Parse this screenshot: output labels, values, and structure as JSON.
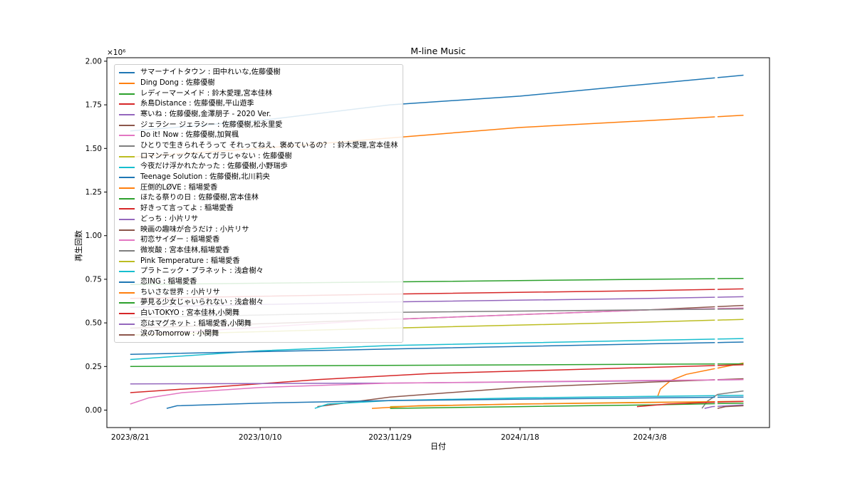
{
  "chart_data": {
    "type": "line",
    "title": "M-line Music",
    "xlabel": "日付",
    "ylabel": "再生回数",
    "y_multiplier_label": "×10⁶",
    "y_unit_scale": 1000000,
    "xlim": [
      "2023-08-12",
      "2024-04-23"
    ],
    "ylim": [
      -0.1,
      2.02
    ],
    "x_ticks": [
      "2023-08-21",
      "2023-10-10",
      "2023-11-29",
      "2024-01-18",
      "2024-03-08"
    ],
    "x_tick_labels": [
      "2023/8/21",
      "2023/10/10",
      "2023/11/29",
      "2024/1/18",
      "2024/3/8"
    ],
    "y_ticks": [
      0.0,
      0.25,
      0.5,
      0.75,
      1.0,
      1.25,
      1.5,
      1.75,
      2.0
    ],
    "y_tick_labels": [
      "0.00",
      "0.25",
      "0.50",
      "0.75",
      "1.00",
      "1.25",
      "1.50",
      "1.75",
      "2.00"
    ],
    "gap_dates": [
      "2024-04-02",
      "2024-04-03"
    ],
    "legend_position": "upper-left",
    "grid": false,
    "series": [
      {
        "name": "サマーナイトタウン : 田中れいな,佐藤優樹",
        "color": "#1f77b4",
        "points": [
          [
            "2023-08-21",
            1.6
          ],
          [
            "2023-10-10",
            1.66
          ],
          [
            "2023-11-29",
            1.75
          ],
          [
            "2024-01-18",
            1.8
          ],
          [
            "2024-03-08",
            1.87
          ],
          [
            "2024-04-13",
            1.92
          ]
        ]
      },
      {
        "name": "Ding Dong : 佐藤優樹",
        "color": "#ff7f0e",
        "points": [
          [
            "2023-08-21",
            1.45
          ],
          [
            "2023-10-10",
            1.5
          ],
          [
            "2023-11-29",
            1.56
          ],
          [
            "2024-01-18",
            1.62
          ],
          [
            "2024-03-08",
            1.66
          ],
          [
            "2024-04-13",
            1.69
          ]
        ]
      },
      {
        "name": "レディーマーメイド : 鈴木愛理,宮本佳林",
        "color": "#2ca02c",
        "points": [
          [
            "2023-08-21",
            0.72
          ],
          [
            "2023-11-29",
            0.735
          ],
          [
            "2024-03-08",
            0.75
          ],
          [
            "2024-04-13",
            0.755
          ]
        ]
      },
      {
        "name": "糸島Distance : 佐藤優樹,平山遊季",
        "color": "#d62728",
        "points": [
          [
            "2023-08-21",
            0.64
          ],
          [
            "2023-11-29",
            0.665
          ],
          [
            "2024-03-08",
            0.685
          ],
          [
            "2024-04-13",
            0.695
          ]
        ]
      },
      {
        "name": "寒いね : 佐藤優樹,金澤朋子 - 2020 Ver.",
        "color": "#9467bd",
        "points": [
          [
            "2023-08-21",
            0.59
          ],
          [
            "2023-11-29",
            0.62
          ],
          [
            "2024-03-08",
            0.64
          ],
          [
            "2024-04-13",
            0.65
          ]
        ]
      },
      {
        "name": "ジェラシー ジェラシー : 佐藤優樹,松永里愛",
        "color": "#8c564b",
        "points": [
          [
            "2023-08-21",
            0.47
          ],
          [
            "2023-11-29",
            0.52
          ],
          [
            "2024-03-08",
            0.575
          ],
          [
            "2024-04-13",
            0.6
          ]
        ]
      },
      {
        "name": "Do it! Now : 佐藤優樹,加賀楓",
        "color": "#e377c2",
        "points": [
          [
            "2023-08-21",
            0.43
          ],
          [
            "2023-11-29",
            0.52
          ],
          [
            "2024-03-08",
            0.575
          ],
          [
            "2024-04-13",
            0.585
          ]
        ]
      },
      {
        "name": "ひとりで生きられそうって それってねえ、褒めているの？ : 鈴木愛理,宮本佳林",
        "color": "#7f7f7f",
        "points": [
          [
            "2023-08-21",
            0.53
          ],
          [
            "2023-11-29",
            0.56
          ],
          [
            "2024-03-08",
            0.575
          ],
          [
            "2024-04-13",
            0.58
          ]
        ]
      },
      {
        "name": "ロマンティックなんてガラじゃない : 佐藤優樹",
        "color": "#bcbd22",
        "points": [
          [
            "2023-08-21",
            0.43
          ],
          [
            "2023-11-29",
            0.47
          ],
          [
            "2024-03-08",
            0.505
          ],
          [
            "2024-04-13",
            0.52
          ]
        ]
      },
      {
        "name": "今夜だけ浮かれたかった : 佐藤優樹,小野瑞歩",
        "color": "#17becf",
        "points": [
          [
            "2023-08-21",
            0.29
          ],
          [
            "2023-10-10",
            0.34
          ],
          [
            "2023-11-29",
            0.37
          ],
          [
            "2024-01-18",
            0.385
          ],
          [
            "2024-03-08",
            0.4
          ],
          [
            "2024-04-13",
            0.41
          ]
        ]
      },
      {
        "name": "Teenage Solution : 佐藤優樹,北川莉央",
        "color": "#1f77b4",
        "points": [
          [
            "2023-08-21",
            0.32
          ],
          [
            "2023-11-29",
            0.35
          ],
          [
            "2024-03-08",
            0.38
          ],
          [
            "2024-04-13",
            0.39
          ]
        ]
      },
      {
        "name": "圧倒的LØVE : 稲場愛香",
        "color": "#ff7f0e",
        "points": [
          [
            "2024-03-11",
            0.08
          ],
          [
            "2024-03-12",
            0.12
          ],
          [
            "2024-03-16",
            0.17
          ],
          [
            "2024-03-22",
            0.205
          ],
          [
            "2024-04-01",
            0.235
          ],
          [
            "2024-04-13",
            0.27
          ]
        ]
      },
      {
        "name": "ほたる祭りの日 : 佐藤優樹,宮本佳林",
        "color": "#2ca02c",
        "points": [
          [
            "2023-08-21",
            0.25
          ],
          [
            "2024-04-13",
            0.265
          ]
        ]
      },
      {
        "name": "好きって言ってよ : 稲場愛香",
        "color": "#d62728",
        "points": [
          [
            "2023-08-21",
            0.1
          ],
          [
            "2023-09-20",
            0.13
          ],
          [
            "2023-11-01",
            0.175
          ],
          [
            "2023-12-15",
            0.21
          ],
          [
            "2024-02-01",
            0.23
          ],
          [
            "2024-04-13",
            0.26
          ]
        ]
      },
      {
        "name": "どっち : 小片リサ",
        "color": "#9467bd",
        "points": [
          [
            "2023-08-21",
            0.15
          ],
          [
            "2023-11-29",
            0.155
          ],
          [
            "2024-03-08",
            0.168
          ],
          [
            "2024-04-13",
            0.175
          ]
        ]
      },
      {
        "name": "映画の趣味が合うだけ : 小片リサ",
        "color": "#8c564b",
        "points": [
          [
            "2023-11-01",
            0.02
          ],
          [
            "2023-11-29",
            0.075
          ],
          [
            "2024-01-18",
            0.13
          ],
          [
            "2024-03-08",
            0.16
          ],
          [
            "2024-04-13",
            0.18
          ]
        ]
      },
      {
        "name": "初恋サイダー : 稲場愛香",
        "color": "#e377c2",
        "points": [
          [
            "2023-08-21",
            0.035
          ],
          [
            "2023-08-28",
            0.07
          ],
          [
            "2023-09-10",
            0.1
          ],
          [
            "2023-10-10",
            0.13
          ],
          [
            "2023-11-29",
            0.155
          ],
          [
            "2024-03-08",
            0.17
          ],
          [
            "2024-04-13",
            0.175
          ]
        ]
      },
      {
        "name": "微炭酸 : 宮本佳林,稲場愛香",
        "color": "#7f7f7f",
        "points": [
          [
            "2024-03-28",
            0.01
          ],
          [
            "2024-03-30",
            0.05
          ],
          [
            "2024-04-03",
            0.09
          ],
          [
            "2024-04-13",
            0.11
          ]
        ]
      },
      {
        "name": "Pink Temperature : 稲場愛香",
        "color": "#bcbd22",
        "points": [
          [
            "2023-11-29",
            0.02
          ],
          [
            "2024-01-18",
            0.035
          ],
          [
            "2024-03-08",
            0.045
          ],
          [
            "2024-04-13",
            0.05
          ]
        ]
      },
      {
        "name": "プラトニック・プラネット : 浅倉樹々",
        "color": "#17becf",
        "points": [
          [
            "2023-10-31",
            0.01
          ],
          [
            "2023-11-05",
            0.035
          ],
          [
            "2023-11-29",
            0.055
          ],
          [
            "2024-01-18",
            0.07
          ],
          [
            "2024-04-13",
            0.085
          ]
        ]
      },
      {
        "name": "恋ING : 稲場愛香",
        "color": "#1f77b4",
        "points": [
          [
            "2023-09-04",
            0.01
          ],
          [
            "2023-09-08",
            0.025
          ],
          [
            "2023-10-10",
            0.04
          ],
          [
            "2023-11-29",
            0.055
          ],
          [
            "2024-03-08",
            0.07
          ],
          [
            "2024-04-13",
            0.075
          ]
        ]
      },
      {
        "name": "ちいさな世界 : 小片リサ",
        "color": "#ff7f0e",
        "points": [
          [
            "2023-11-22",
            0.01
          ],
          [
            "2023-12-10",
            0.025
          ],
          [
            "2024-01-18",
            0.035
          ],
          [
            "2024-04-13",
            0.05
          ]
        ]
      },
      {
        "name": "夢見る少女じゃいられない : 浅倉樹々",
        "color": "#2ca02c",
        "points": [
          [
            "2023-11-29",
            0.01
          ],
          [
            "2024-01-18",
            0.02
          ],
          [
            "2024-03-08",
            0.03
          ],
          [
            "2024-04-13",
            0.04
          ]
        ]
      },
      {
        "name": "白いTOKYO : 宮本佳林,小関舞",
        "color": "#d62728",
        "points": [
          [
            "2024-03-03",
            0.02
          ],
          [
            "2024-03-15",
            0.035
          ],
          [
            "2024-04-01",
            0.045
          ],
          [
            "2024-04-13",
            0.05
          ]
        ]
      },
      {
        "name": "恋はマグネット : 稲場愛香,小関舞",
        "color": "#9467bd",
        "points": [
          [
            "2024-03-29",
            0.01
          ],
          [
            "2024-04-01",
            0.02
          ],
          [
            "2024-04-13",
            0.03
          ]
        ]
      },
      {
        "name": "涙のTomorrow : 小関舞",
        "color": "#8c564b",
        "points": [
          [
            "2024-04-03",
            0.01
          ],
          [
            "2024-04-06",
            0.02
          ],
          [
            "2024-04-13",
            0.025
          ]
        ]
      }
    ]
  }
}
